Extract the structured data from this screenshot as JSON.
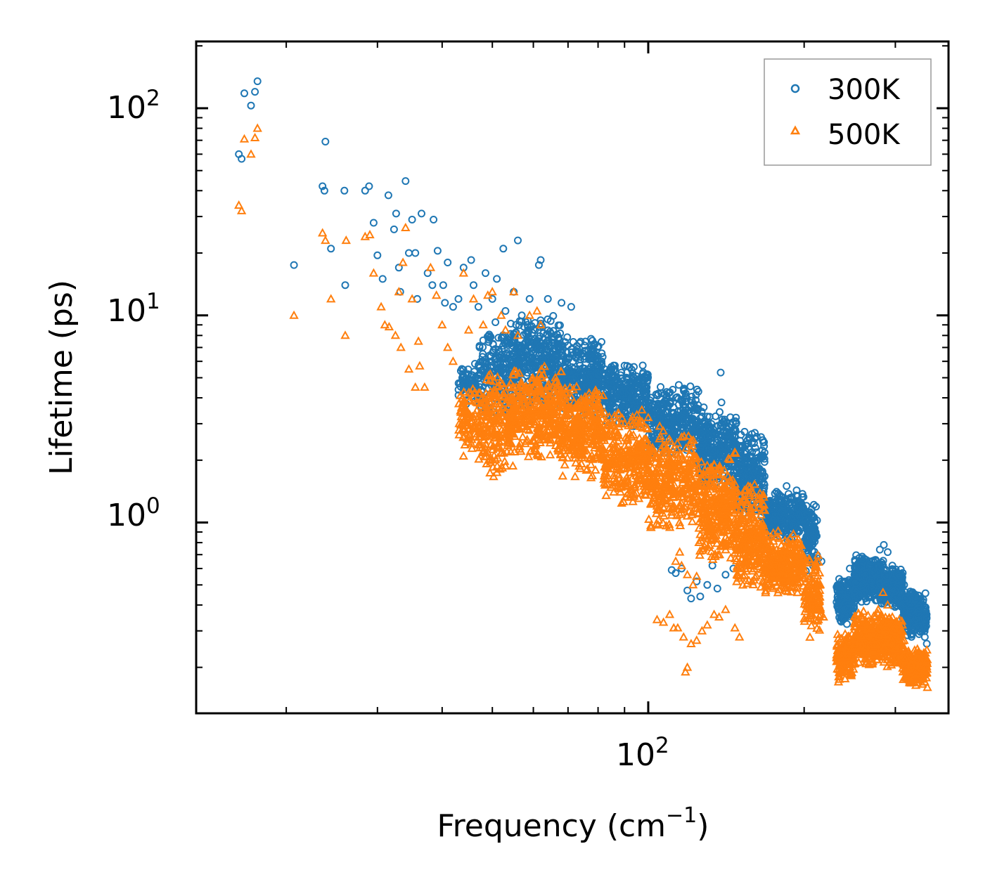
{
  "chart_data": {
    "type": "scatter",
    "xscale": "log",
    "yscale": "log",
    "xlim": [
      13.4,
      380
    ],
    "ylim": [
      0.12,
      210
    ],
    "xlabel": "Frequency (cm",
    "xlabel_sup": "−1",
    "xlabel_close": ")",
    "ylabel": "Lifetime (ps)",
    "x_major_ticks": [
      {
        "base": "10",
        "exp": "2",
        "value": 100
      }
    ],
    "y_major_ticks": [
      {
        "base": "10",
        "exp": "0",
        "value": 1
      },
      {
        "base": "10",
        "exp": "1",
        "value": 10
      },
      {
        "base": "10",
        "exp": "2",
        "value": 100
      }
    ],
    "legend_position": "top-right",
    "series": [
      {
        "name": "300K",
        "marker": "circle",
        "color": "#1f77b4",
        "points": [
          [
            16.2,
            60
          ],
          [
            16.4,
            57
          ],
          [
            16.6,
            118
          ],
          [
            17.1,
            103
          ],
          [
            17.4,
            120
          ],
          [
            17.6,
            135
          ],
          [
            20.7,
            17.5
          ],
          [
            23.5,
            42
          ],
          [
            23.7,
            40
          ],
          [
            23.8,
            69
          ],
          [
            24.4,
            21
          ],
          [
            25.9,
            40
          ],
          [
            26.0,
            14
          ],
          [
            28.4,
            40
          ],
          [
            28.9,
            42
          ],
          [
            29.5,
            28
          ],
          [
            30.0,
            19.5
          ],
          [
            30.7,
            15
          ],
          [
            31.5,
            38
          ],
          [
            32.3,
            26
          ],
          [
            32.6,
            31
          ],
          [
            33.0,
            17
          ],
          [
            33.2,
            13
          ],
          [
            34.0,
            44.5
          ],
          [
            34.5,
            20
          ],
          [
            35.0,
            29
          ],
          [
            35.5,
            20
          ],
          [
            35.8,
            12
          ],
          [
            36.5,
            31
          ],
          [
            37.5,
            16
          ],
          [
            38.3,
            14
          ],
          [
            38.5,
            29
          ],
          [
            39.2,
            20.5
          ],
          [
            40.2,
            14
          ],
          [
            40.5,
            11.5
          ],
          [
            41.0,
            18
          ],
          [
            42.0,
            11
          ],
          [
            43.0,
            12
          ],
          [
            44.0,
            17
          ],
          [
            45.5,
            18.5
          ],
          [
            46.0,
            14
          ],
          [
            47.0,
            11
          ],
          [
            48.5,
            16
          ],
          [
            50.0,
            12
          ],
          [
            51.0,
            15
          ],
          [
            52.5,
            21
          ],
          [
            53.0,
            10.5
          ],
          [
            55.0,
            13
          ],
          [
            56.0,
            23
          ],
          [
            57.0,
            10
          ],
          [
            59.0,
            12
          ],
          [
            61.5,
            17.5
          ],
          [
            62.0,
            18.5
          ],
          [
            64.0,
            12
          ],
          [
            68.0,
            11.5
          ],
          [
            71.0,
            11
          ],
          [
            78.0,
            6.8
          ],
          [
            85.0,
            5.5
          ],
          [
            91.0,
            5.3
          ],
          [
            96.0,
            4.7
          ],
          [
            106.0,
            4.2
          ],
          [
            118.0,
            3.6
          ],
          [
            128.0,
            3.6
          ],
          [
            138.0,
            5.3
          ],
          [
            138.5,
            3.8
          ],
          [
            111,
            0.59
          ],
          [
            113,
            0.57
          ],
          [
            116,
            0.6
          ],
          [
            119,
            0.47
          ],
          [
            121,
            0.43
          ],
          [
            124,
            0.52
          ],
          [
            126,
            0.44
          ],
          [
            130,
            0.5
          ],
          [
            133,
            0.62
          ],
          [
            136,
            0.48
          ],
          [
            141,
            0.56
          ],
          [
            146,
            0.6
          ],
          [
            170,
            1.25
          ],
          [
            177,
            1.05
          ],
          [
            185,
            1.5
          ],
          [
            193,
            1.35
          ],
          [
            195,
            0.92
          ],
          [
            199,
            0.75
          ],
          [
            204,
            0.55
          ],
          [
            208,
            0.62
          ],
          [
            213,
            0.67
          ],
          [
            216,
            0.65
          ],
          [
            210,
            0.45
          ],
          [
            233,
            0.38
          ],
          [
            240,
            0.45
          ],
          [
            245,
            0.6
          ],
          [
            250,
            0.52
          ],
          [
            256,
            0.56
          ],
          [
            262,
            0.58
          ],
          [
            268,
            0.48
          ],
          [
            275,
            0.66
          ],
          [
            280,
            0.74
          ],
          [
            285,
            0.78
          ],
          [
            290,
            0.72
          ],
          [
            296,
            0.62
          ],
          [
            300,
            0.55
          ],
          [
            306,
            0.53
          ],
          [
            312,
            0.5
          ],
          [
            318,
            0.42
          ],
          [
            325,
            0.4
          ],
          [
            332,
            0.33
          ],
          [
            338,
            0.3
          ],
          [
            342,
            0.28
          ],
          [
            345,
            0.26
          ]
        ],
        "bands": [
          {
            "x": [
              43,
              47
            ],
            "y": [
              3.5,
              6.2
            ],
            "n": 60
          },
          {
            "x": [
              47,
              55
            ],
            "y": [
              3.2,
              9.5
            ],
            "n": 200
          },
          {
            "x": [
              55,
              68
            ],
            "y": [
              3.5,
              10.5
            ],
            "n": 330
          },
          {
            "x": [
              68,
              82
            ],
            "y": [
              3.2,
              8.0
            ],
            "n": 300
          },
          {
            "x": [
              82,
              100
            ],
            "y": [
              2.8,
              6.0
            ],
            "n": 300
          },
          {
            "x": [
              100,
              125
            ],
            "y": [
              2.0,
              4.8
            ],
            "n": 320
          },
          {
            "x": [
              125,
              148
            ],
            "y": [
              1.4,
              3.6
            ],
            "n": 320
          },
          {
            "x": [
              148,
              168
            ],
            "y": [
              1.0,
              2.8
            ],
            "n": 260
          },
          {
            "x": [
              168,
              200
            ],
            "y": [
              0.82,
              1.45
            ],
            "n": 300
          },
          {
            "x": [
              200,
              212
            ],
            "y": [
              0.55,
              1.3
            ],
            "n": 110
          },
          {
            "x": [
              231,
              250
            ],
            "y": [
              0.32,
              0.55
            ],
            "n": 180
          },
          {
            "x": [
              250,
              285
            ],
            "y": [
              0.4,
              0.7
            ],
            "n": 330
          },
          {
            "x": [
              285,
              310
            ],
            "y": [
              0.38,
              0.62
            ],
            "n": 220
          },
          {
            "x": [
              310,
              345
            ],
            "y": [
              0.27,
              0.48
            ],
            "n": 240
          }
        ]
      },
      {
        "name": "500K",
        "marker": "triangle",
        "color": "#ff7f0e",
        "points": [
          [
            16.2,
            34
          ],
          [
            16.4,
            32
          ],
          [
            16.6,
            71
          ],
          [
            17.1,
            60
          ],
          [
            17.4,
            72
          ],
          [
            17.6,
            80
          ],
          [
            20.7,
            10
          ],
          [
            23.5,
            25
          ],
          [
            23.8,
            23
          ],
          [
            24.4,
            12
          ],
          [
            26.0,
            8
          ],
          [
            26.1,
            23
          ],
          [
            28.4,
            24
          ],
          [
            29.0,
            24.5
          ],
          [
            29.5,
            16
          ],
          [
            30.5,
            11
          ],
          [
            31.0,
            9
          ],
          [
            31.6,
            8.8
          ],
          [
            32.5,
            8
          ],
          [
            33.0,
            13
          ],
          [
            33.3,
            7
          ],
          [
            33.6,
            18
          ],
          [
            34.0,
            26.5
          ],
          [
            34.5,
            5.5
          ],
          [
            35.0,
            12
          ],
          [
            35.5,
            4.5
          ],
          [
            36.0,
            7.5
          ],
          [
            36.2,
            5.7
          ],
          [
            37.0,
            4.5
          ],
          [
            38.0,
            17
          ],
          [
            39.0,
            12.5
          ],
          [
            40.0,
            9
          ],
          [
            41.0,
            7
          ],
          [
            42.0,
            6
          ],
          [
            44.0,
            16
          ],
          [
            45.0,
            8.5
          ],
          [
            46.0,
            12
          ],
          [
            48.0,
            9
          ],
          [
            49.0,
            12.5
          ],
          [
            50.0,
            13
          ],
          [
            52.0,
            10
          ],
          [
            53.0,
            8.5
          ],
          [
            55.0,
            13
          ],
          [
            56.0,
            8
          ],
          [
            59.0,
            10
          ],
          [
            61.0,
            10.5
          ],
          [
            62.0,
            9
          ],
          [
            113,
            0.65
          ],
          [
            115,
            0.72
          ],
          [
            116,
            0.62
          ],
          [
            119,
            0.56
          ],
          [
            122,
            0.5
          ],
          [
            124,
            0.55
          ],
          [
            104,
            0.34
          ],
          [
            107,
            0.33
          ],
          [
            110,
            0.36
          ],
          [
            112,
            0.31
          ],
          [
            114,
            0.31
          ],
          [
            117,
            0.28
          ],
          [
            121,
            0.26
          ],
          [
            124,
            0.27
          ],
          [
            127,
            0.3
          ],
          [
            130,
            0.32
          ],
          [
            134,
            0.36
          ],
          [
            137,
            0.35
          ],
          [
            141,
            0.38
          ],
          [
            147,
            0.31
          ],
          [
            150,
            0.28
          ],
          [
            118,
            0.19
          ],
          [
            119,
            0.2
          ],
          [
            205,
            0.65
          ],
          [
            209,
            0.45
          ],
          [
            212,
            0.38
          ],
          [
            215,
            0.36
          ],
          [
            218,
            0.35
          ],
          [
            233,
            0.17
          ],
          [
            238,
            0.19
          ],
          [
            244,
            0.23
          ],
          [
            250,
            0.25
          ],
          [
            256,
            0.28
          ],
          [
            262,
            0.31
          ],
          [
            270,
            0.33
          ],
          [
            278,
            0.38
          ],
          [
            284,
            0.46
          ],
          [
            290,
            0.4
          ],
          [
            296,
            0.35
          ],
          [
            300,
            0.32
          ],
          [
            306,
            0.28
          ],
          [
            312,
            0.27
          ],
          [
            318,
            0.24
          ],
          [
            325,
            0.22
          ],
          [
            332,
            0.19
          ],
          [
            338,
            0.18
          ],
          [
            342,
            0.17
          ],
          [
            346,
            0.16
          ]
        ],
        "bands": [
          {
            "x": [
              43,
              47
            ],
            "y": [
              2.0,
              5.0
            ],
            "n": 80
          },
          {
            "x": [
              47,
              55
            ],
            "y": [
              1.6,
              5.8
            ],
            "n": 230
          },
          {
            "x": [
              55,
              68
            ],
            "y": [
              2.0,
              5.8
            ],
            "n": 330
          },
          {
            "x": [
              68,
              82
            ],
            "y": [
              1.6,
              4.8
            ],
            "n": 300
          },
          {
            "x": [
              82,
              100
            ],
            "y": [
              1.2,
              3.6
            ],
            "n": 300
          },
          {
            "x": [
              100,
              125
            ],
            "y": [
              0.85,
              3.0
            ],
            "n": 320
          },
          {
            "x": [
              125,
              148
            ],
            "y": [
              0.62,
              2.2
            ],
            "n": 320
          },
          {
            "x": [
              148,
              168
            ],
            "y": [
              0.45,
              1.6
            ],
            "n": 260
          },
          {
            "x": [
              168,
              200
            ],
            "y": [
              0.44,
              0.92
            ],
            "n": 280
          },
          {
            "x": [
              200,
              215
            ],
            "y": [
              0.27,
              0.7
            ],
            "n": 130
          },
          {
            "x": [
              231,
              250
            ],
            "y": [
              0.17,
              0.3
            ],
            "n": 150
          },
          {
            "x": [
              250,
              285
            ],
            "y": [
              0.2,
              0.38
            ],
            "n": 280
          },
          {
            "x": [
              285,
              310
            ],
            "y": [
              0.2,
              0.36
            ],
            "n": 200
          },
          {
            "x": [
              310,
              346
            ],
            "y": [
              0.16,
              0.26
            ],
            "n": 220
          }
        ]
      }
    ]
  }
}
